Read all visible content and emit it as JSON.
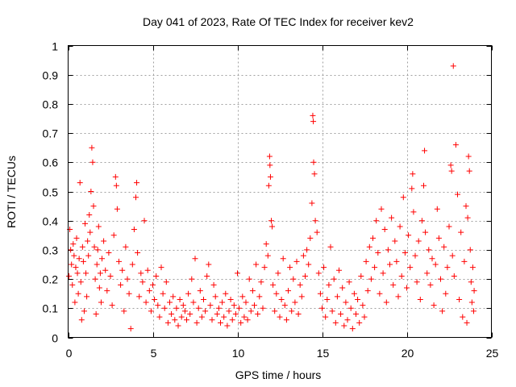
{
  "chart_data": {
    "type": "scatter",
    "title": "Day 041 of 2023, Rate Of TEC Index for receiver kev2",
    "xlabel": "GPS time / hours",
    "ylabel": "ROTI / TECUs",
    "xlim": [
      0,
      25
    ],
    "ylim": [
      0,
      1
    ],
    "xticks": [
      "0",
      "5",
      "10",
      "15",
      "20",
      "25"
    ],
    "yticks": [
      "0",
      "0.1",
      "0.2",
      "0.3",
      "0.4",
      "0.5",
      "0.6",
      "0.7",
      "0.8",
      "0.9",
      "1"
    ],
    "grid": true,
    "marker": "+",
    "color": "#ff0000",
    "series": [
      {
        "name": "ROTI",
        "points": [
          [
            0.05,
            0.21
          ],
          [
            0.1,
            0.37
          ],
          [
            0.15,
            0.3
          ],
          [
            0.2,
            0.25
          ],
          [
            0.25,
            0.18
          ],
          [
            0.3,
            0.32
          ],
          [
            0.35,
            0.28
          ],
          [
            0.4,
            0.12
          ],
          [
            0.45,
            0.24
          ],
          [
            0.5,
            0.34
          ],
          [
            0.55,
            0.22
          ],
          [
            0.6,
            0.15
          ],
          [
            0.65,
            0.27
          ],
          [
            0.7,
            0.53
          ],
          [
            0.75,
            0.19
          ],
          [
            0.8,
            0.06
          ],
          [
            0.85,
            0.31
          ],
          [
            0.9,
            0.26
          ],
          [
            0.95,
            0.09
          ],
          [
            1.0,
            0.39
          ],
          [
            1.05,
            0.22
          ],
          [
            1.1,
            0.14
          ],
          [
            1.15,
            0.33
          ],
          [
            1.2,
            0.28
          ],
          [
            1.25,
            0.42
          ],
          [
            1.3,
            0.36
          ],
          [
            1.35,
            0.5
          ],
          [
            1.4,
            0.65
          ],
          [
            1.45,
            0.6
          ],
          [
            1.5,
            0.45
          ],
          [
            1.55,
            0.31
          ],
          [
            1.6,
            0.2
          ],
          [
            1.65,
            0.08
          ],
          [
            1.7,
            0.25
          ],
          [
            1.75,
            0.3
          ],
          [
            1.8,
            0.38
          ],
          [
            1.85,
            0.17
          ],
          [
            1.9,
            0.22
          ],
          [
            1.95,
            0.12
          ],
          [
            2.0,
            0.27
          ],
          [
            2.1,
            0.33
          ],
          [
            2.2,
            0.23
          ],
          [
            2.3,
            0.16
          ],
          [
            2.4,
            0.29
          ],
          [
            2.5,
            0.21
          ],
          [
            2.6,
            0.11
          ],
          [
            2.7,
            0.35
          ],
          [
            2.8,
            0.55
          ],
          [
            2.85,
            0.52
          ],
          [
            2.9,
            0.44
          ],
          [
            3.0,
            0.26
          ],
          [
            3.1,
            0.18
          ],
          [
            3.2,
            0.23
          ],
          [
            3.3,
            0.09
          ],
          [
            3.4,
            0.31
          ],
          [
            3.5,
            0.2
          ],
          [
            3.6,
            0.15
          ],
          [
            3.7,
            0.03
          ],
          [
            3.8,
            0.25
          ],
          [
            3.9,
            0.37
          ],
          [
            4.0,
            0.48
          ],
          [
            4.05,
            0.53
          ],
          [
            4.1,
            0.29
          ],
          [
            4.2,
            0.14
          ],
          [
            4.3,
            0.22
          ],
          [
            4.4,
            0.19
          ],
          [
            4.5,
            0.4
          ],
          [
            4.6,
            0.12
          ],
          [
            4.7,
            0.23
          ],
          [
            4.8,
            0.16
          ],
          [
            4.9,
            0.09
          ],
          [
            5.0,
            0.18
          ],
          [
            5.1,
            0.13
          ],
          [
            5.2,
            0.21
          ],
          [
            5.3,
            0.11
          ],
          [
            5.4,
            0.07
          ],
          [
            5.5,
            0.24
          ],
          [
            5.6,
            0.15
          ],
          [
            5.7,
            0.1
          ],
          [
            5.8,
            0.19
          ],
          [
            5.9,
            0.05
          ],
          [
            6.0,
            0.12
          ],
          [
            6.1,
            0.08
          ],
          [
            6.2,
            0.14
          ],
          [
            6.3,
            0.06
          ],
          [
            6.4,
            0.1
          ],
          [
            6.5,
            0.04
          ],
          [
            6.6,
            0.13
          ],
          [
            6.7,
            0.07
          ],
          [
            6.8,
            0.11
          ],
          [
            6.9,
            0.09
          ],
          [
            7.0,
            0.06
          ],
          [
            7.1,
            0.15
          ],
          [
            7.2,
            0.08
          ],
          [
            7.3,
            0.2
          ],
          [
            7.4,
            0.12
          ],
          [
            7.5,
            0.27
          ],
          [
            7.6,
            0.05
          ],
          [
            7.7,
            0.1
          ],
          [
            7.8,
            0.16
          ],
          [
            7.9,
            0.07
          ],
          [
            8.0,
            0.13
          ],
          [
            8.1,
            0.09
          ],
          [
            8.2,
            0.21
          ],
          [
            8.3,
            0.25
          ],
          [
            8.4,
            0.11
          ],
          [
            8.5,
            0.06
          ],
          [
            8.6,
            0.18
          ],
          [
            8.7,
            0.14
          ],
          [
            8.8,
            0.08
          ],
          [
            8.9,
            0.1
          ],
          [
            9.0,
            0.05
          ],
          [
            9.1,
            0.12
          ],
          [
            9.2,
            0.07
          ],
          [
            9.3,
            0.15
          ],
          [
            9.4,
            0.04
          ],
          [
            9.5,
            0.09
          ],
          [
            9.6,
            0.13
          ],
          [
            9.7,
            0.06
          ],
          [
            9.8,
            0.11
          ],
          [
            9.9,
            0.08
          ],
          [
            10.0,
            0.22
          ],
          [
            10.1,
            0.1
          ],
          [
            10.2,
            0.05
          ],
          [
            10.3,
            0.14
          ],
          [
            10.4,
            0.07
          ],
          [
            10.5,
            0.12
          ],
          [
            10.6,
            0.06
          ],
          [
            10.7,
            0.2
          ],
          [
            10.8,
            0.09
          ],
          [
            10.9,
            0.16
          ],
          [
            11.0,
            0.11
          ],
          [
            11.1,
            0.25
          ],
          [
            11.2,
            0.08
          ],
          [
            11.3,
            0.14
          ],
          [
            11.4,
            0.19
          ],
          [
            11.5,
            0.1
          ],
          [
            11.6,
            0.24
          ],
          [
            11.7,
            0.32
          ],
          [
            11.8,
            0.28
          ],
          [
            11.85,
            0.52
          ],
          [
            11.9,
            0.62
          ],
          [
            11.92,
            0.59
          ],
          [
            11.95,
            0.55
          ],
          [
            12.0,
            0.4
          ],
          [
            12.05,
            0.38
          ],
          [
            12.1,
            0.18
          ],
          [
            12.2,
            0.09
          ],
          [
            12.3,
            0.15
          ],
          [
            12.4,
            0.22
          ],
          [
            12.5,
            0.07
          ],
          [
            12.6,
            0.13
          ],
          [
            12.7,
            0.27
          ],
          [
            12.8,
            0.11
          ],
          [
            12.9,
            0.06
          ],
          [
            13.0,
            0.16
          ],
          [
            13.1,
            0.24
          ],
          [
            13.2,
            0.09
          ],
          [
            13.3,
            0.2
          ],
          [
            13.4,
            0.12
          ],
          [
            13.5,
            0.26
          ],
          [
            13.6,
            0.08
          ],
          [
            13.7,
            0.18
          ],
          [
            13.8,
            0.14
          ],
          [
            13.9,
            0.28
          ],
          [
            14.0,
            0.21
          ],
          [
            14.1,
            0.3
          ],
          [
            14.2,
            0.25
          ],
          [
            14.3,
            0.34
          ],
          [
            14.4,
            0.46
          ],
          [
            14.45,
            0.76
          ],
          [
            14.48,
            0.74
          ],
          [
            14.5,
            0.6
          ],
          [
            14.55,
            0.56
          ],
          [
            14.6,
            0.4
          ],
          [
            14.7,
            0.36
          ],
          [
            14.8,
            0.22
          ],
          [
            14.9,
            0.15
          ],
          [
            15.0,
            0.1
          ],
          [
            15.1,
            0.24
          ],
          [
            15.2,
            0.07
          ],
          [
            15.3,
            0.13
          ],
          [
            15.4,
            0.18
          ],
          [
            15.5,
            0.31
          ],
          [
            15.6,
            0.09
          ],
          [
            15.7,
            0.2
          ],
          [
            15.8,
            0.05
          ],
          [
            15.9,
            0.14
          ],
          [
            16.0,
            0.23
          ],
          [
            16.1,
            0.08
          ],
          [
            16.2,
            0.17
          ],
          [
            16.3,
            0.04
          ],
          [
            16.4,
            0.12
          ],
          [
            16.5,
            0.06
          ],
          [
            16.6,
            0.19
          ],
          [
            16.7,
            0.1
          ],
          [
            16.8,
            0.03
          ],
          [
            16.9,
            0.15
          ],
          [
            17.0,
            0.08
          ],
          [
            17.1,
            0.13
          ],
          [
            17.2,
            0.05
          ],
          [
            17.3,
            0.21
          ],
          [
            17.4,
            0.11
          ],
          [
            17.5,
            0.07
          ],
          [
            17.6,
            0.26
          ],
          [
            17.7,
            0.16
          ],
          [
            17.8,
            0.31
          ],
          [
            17.9,
            0.2
          ],
          [
            18.0,
            0.34
          ],
          [
            18.1,
            0.24
          ],
          [
            18.2,
            0.4
          ],
          [
            18.3,
            0.29
          ],
          [
            18.4,
            0.15
          ],
          [
            18.5,
            0.44
          ],
          [
            18.6,
            0.22
          ],
          [
            18.7,
            0.37
          ],
          [
            18.8,
            0.12
          ],
          [
            18.9,
            0.3
          ],
          [
            19.0,
            0.25
          ],
          [
            19.1,
            0.41
          ],
          [
            19.2,
            0.18
          ],
          [
            19.3,
            0.33
          ],
          [
            19.4,
            0.26
          ],
          [
            19.5,
            0.14
          ],
          [
            19.6,
            0.38
          ],
          [
            19.7,
            0.21
          ],
          [
            19.8,
            0.48
          ],
          [
            19.9,
            0.29
          ],
          [
            20.0,
            0.17
          ],
          [
            20.1,
            0.35
          ],
          [
            20.2,
            0.24
          ],
          [
            20.3,
            0.51
          ],
          [
            20.35,
            0.56
          ],
          [
            20.4,
            0.43
          ],
          [
            20.5,
            0.28
          ],
          [
            20.6,
            0.19
          ],
          [
            20.7,
            0.33
          ],
          [
            20.8,
            0.13
          ],
          [
            20.9,
            0.4
          ],
          [
            21.0,
            0.52
          ],
          [
            21.05,
            0.64
          ],
          [
            21.1,
            0.36
          ],
          [
            21.2,
            0.22
          ],
          [
            21.3,
            0.3
          ],
          [
            21.4,
            0.18
          ],
          [
            21.5,
            0.27
          ],
          [
            21.6,
            0.11
          ],
          [
            21.7,
            0.25
          ],
          [
            21.8,
            0.44
          ],
          [
            21.9,
            0.34
          ],
          [
            22.0,
            0.2
          ],
          [
            22.1,
            0.09
          ],
          [
            22.2,
            0.31
          ],
          [
            22.3,
            0.15
          ],
          [
            22.4,
            0.24
          ],
          [
            22.5,
            0.38
          ],
          [
            22.6,
            0.59
          ],
          [
            22.65,
            0.57
          ],
          [
            22.7,
            0.28
          ],
          [
            22.75,
            0.93
          ],
          [
            22.8,
            0.21
          ],
          [
            22.9,
            0.66
          ],
          [
            23.0,
            0.49
          ],
          [
            23.1,
            0.13
          ],
          [
            23.2,
            0.36
          ],
          [
            23.3,
            0.07
          ],
          [
            23.4,
            0.26
          ],
          [
            23.5,
            0.45
          ],
          [
            23.55,
            0.05
          ],
          [
            23.6,
            0.41
          ],
          [
            23.65,
            0.62
          ],
          [
            23.7,
            0.57
          ],
          [
            23.75,
            0.3
          ],
          [
            23.8,
            0.19
          ],
          [
            23.85,
            0.12
          ],
          [
            23.9,
            0.24
          ],
          [
            23.95,
            0.09
          ],
          [
            23.98,
            0.16
          ]
        ]
      }
    ]
  }
}
